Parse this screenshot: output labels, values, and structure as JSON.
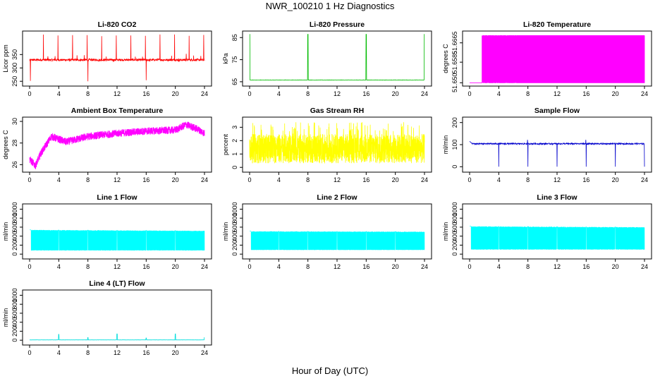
{
  "figure": {
    "title": "NWR_100210  1 Hz Diagnostics",
    "xlabel": "Hour of Day (UTC)"
  },
  "chart_data": [
    {
      "type": "line",
      "title": "Li-820 CO2",
      "ylabel": "Licor ppm",
      "color": "#ff0000",
      "xlim": [
        0,
        24
      ],
      "ylim": [
        240,
        430
      ],
      "x_ticks": [
        0,
        4,
        8,
        12,
        16,
        20,
        24
      ],
      "y_ticks": [
        250,
        300,
        350
      ],
      "y_tick_labels": [
        "250",
        "300",
        "350"
      ],
      "baseline": 330,
      "noise": 4,
      "spike_every": 2,
      "spike_max": 425,
      "dips_at": [
        0.1,
        8,
        16
      ],
      "dip_min": 245
    },
    {
      "type": "line",
      "title": "Li-820 Pressure",
      "ylabel": "kPa",
      "color": "#00bb00",
      "xlim": [
        0,
        24
      ],
      "ylim": [
        64,
        87
      ],
      "x_ticks": [
        0,
        4,
        8,
        12,
        16,
        20,
        24
      ],
      "y_ticks": [
        65,
        75,
        85
      ],
      "y_tick_labels": [
        "65",
        "75",
        "85"
      ],
      "baseline": 65.8,
      "noise": 0.1,
      "spikes_at": [
        0,
        8,
        16,
        24
      ],
      "spike_max": 86.5
    },
    {
      "type": "area",
      "title": "Li-820 Temperature",
      "ylabel": "degrees C",
      "color": "#ff00ff",
      "xlim": [
        0,
        24
      ],
      "ylim": [
        51.6495,
        51.6705
      ],
      "x_ticks": [
        0,
        4,
        8,
        12,
        16,
        20,
        24
      ],
      "y_ticks": [
        51.65,
        51.6585,
        51.6665
      ],
      "y_tick_labels": [
        "51.650",
        "51.6585",
        "51.6665"
      ],
      "low": 51.65,
      "high": 51.6695,
      "starts_toggling_at": 1.7,
      "solid_from": 6.5
    },
    {
      "type": "line",
      "title": "Ambient Box Temperature",
      "ylabel": "degrees C",
      "color": "#ff00ff",
      "xlim": [
        0,
        24
      ],
      "ylim": [
        25.5,
        30.2
      ],
      "x_ticks": [
        0,
        4,
        8,
        12,
        16,
        20,
        24
      ],
      "y_ticks": [
        26,
        28,
        30
      ],
      "y_tick_labels": [
        "26",
        "28",
        "30"
      ],
      "trend": [
        [
          0,
          26.5
        ],
        [
          0.8,
          25.9
        ],
        [
          1.5,
          27.0
        ],
        [
          3,
          28.6
        ],
        [
          5,
          28.1
        ],
        [
          8,
          28.6
        ],
        [
          12,
          28.9
        ],
        [
          16,
          29.1
        ],
        [
          20,
          29.2
        ],
        [
          21.5,
          29.7
        ],
        [
          23,
          29.3
        ],
        [
          24,
          28.9
        ]
      ],
      "noise": 0.35
    },
    {
      "type": "line",
      "title": "Gas Stream RH",
      "ylabel": "percent",
      "color": "#ffff00",
      "xlim": [
        0,
        24
      ],
      "ylim": [
        -0.2,
        3.6
      ],
      "x_ticks": [
        0,
        4,
        8,
        12,
        16,
        20,
        24
      ],
      "y_ticks": [
        0,
        1,
        2,
        3
      ],
      "y_tick_labels": [
        "0",
        "1",
        "2",
        "3"
      ],
      "center": 1.4,
      "amplitude": 1.1,
      "peak_max": 3.4
    },
    {
      "type": "line",
      "title": "Sample Flow",
      "ylabel": "ml/min",
      "color": "#0000cc",
      "xlim": [
        0,
        24
      ],
      "ylim": [
        -15,
        215
      ],
      "x_ticks": [
        0,
        4,
        8,
        12,
        16,
        20,
        24
      ],
      "y_ticks": [
        0,
        100,
        200
      ],
      "y_tick_labels": [
        "0",
        "100",
        "200"
      ],
      "baseline": 104,
      "noise": 3,
      "dips_at": [
        4,
        8,
        12,
        16,
        20,
        24
      ],
      "dip_min": 0,
      "up_spikes_at": [
        8,
        16
      ],
      "up_max": 122
    },
    {
      "type": "area",
      "title": "Line 1 Flow",
      "ylabel": "ml/min",
      "color": "#00ffff",
      "xlim": [
        0,
        24
      ],
      "ylim": [
        -60,
        1070
      ],
      "x_ticks": [
        0,
        4,
        8,
        12,
        16,
        20,
        24
      ],
      "y_ticks": [
        0,
        200,
        400,
        600,
        800,
        1000
      ],
      "y_tick_labels": [
        "0",
        "200",
        "400",
        "600",
        "800",
        "1000"
      ],
      "low": 80,
      "high": 540,
      "high_end": 520,
      "gaps_at": [
        4,
        8,
        12,
        16,
        20
      ]
    },
    {
      "type": "area",
      "title": "Line 2 Flow",
      "ylabel": "ml/min",
      "color": "#00ffff",
      "xlim": [
        0,
        24
      ],
      "ylim": [
        -60,
        1070
      ],
      "x_ticks": [
        0,
        4,
        8,
        12,
        16,
        20,
        24
      ],
      "y_ticks": [
        0,
        200,
        400,
        600,
        800,
        1000
      ],
      "y_tick_labels": [
        "0",
        "200",
        "400",
        "600",
        "800",
        "1000"
      ],
      "low": 90,
      "high": 510,
      "high_end": 500,
      "gaps_at": [
        4,
        8,
        12,
        16,
        20
      ]
    },
    {
      "type": "area",
      "title": "Line 3 Flow",
      "ylabel": "ml/min",
      "color": "#00ffff",
      "xlim": [
        0,
        24
      ],
      "ylim": [
        -60,
        1070
      ],
      "x_ticks": [
        0,
        4,
        8,
        12,
        16,
        20,
        24
      ],
      "y_ticks": [
        0,
        200,
        400,
        600,
        800,
        1000
      ],
      "y_tick_labels": [
        "0",
        "200",
        "400",
        "600",
        "800",
        "1000"
      ],
      "low": 100,
      "high": 620,
      "high_end": 600,
      "gaps_at": [
        4,
        8,
        12,
        16,
        20
      ]
    },
    {
      "type": "line",
      "title": "Line 4 (LT) Flow",
      "ylabel": "ml/min",
      "color": "#00dddd",
      "xlim": [
        0,
        24
      ],
      "ylim": [
        -60,
        1070
      ],
      "x_ticks": [
        0,
        4,
        8,
        12,
        16,
        20,
        24
      ],
      "y_ticks": [
        0,
        200,
        400,
        600,
        800,
        1000
      ],
      "y_tick_labels": [
        "0",
        "200",
        "400",
        "600",
        "800",
        "1000"
      ],
      "baseline": 5,
      "spikes": [
        [
          4,
          130
        ],
        [
          8,
          60
        ],
        [
          12,
          140
        ],
        [
          16,
          50
        ],
        [
          20,
          140
        ],
        [
          24,
          60
        ]
      ]
    }
  ]
}
